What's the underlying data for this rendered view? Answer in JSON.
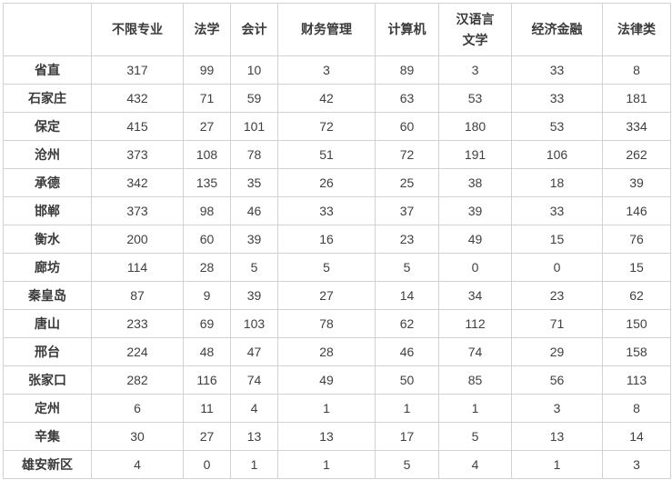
{
  "chart_data": {
    "type": "table",
    "title": "",
    "corner_label": "",
    "columns": [
      "不限专业",
      "法学",
      "会计",
      "财务管理",
      "计算机",
      "汉语言文学",
      "经济金融",
      "法律类"
    ],
    "column_header_lines": [
      [
        "不限专业"
      ],
      [
        "法学"
      ],
      [
        "会计"
      ],
      [
        "财务管理"
      ],
      [
        "计算机"
      ],
      [
        "汉语言",
        "文学"
      ],
      [
        "经济金融"
      ],
      [
        "法律类"
      ]
    ],
    "rows": [
      {
        "region": "省直",
        "values": [
          317,
          99,
          10,
          3,
          89,
          3,
          33,
          8
        ]
      },
      {
        "region": "石家庄",
        "values": [
          432,
          71,
          59,
          42,
          63,
          53,
          33,
          181
        ]
      },
      {
        "region": "保定",
        "values": [
          415,
          27,
          101,
          72,
          60,
          180,
          53,
          334
        ]
      },
      {
        "region": "沧州",
        "values": [
          373,
          108,
          78,
          51,
          72,
          191,
          106,
          262
        ]
      },
      {
        "region": "承德",
        "values": [
          342,
          135,
          35,
          26,
          25,
          38,
          18,
          39
        ]
      },
      {
        "region": "邯郸",
        "values": [
          373,
          98,
          46,
          33,
          37,
          39,
          33,
          146
        ]
      },
      {
        "region": "衡水",
        "values": [
          200,
          60,
          39,
          16,
          23,
          49,
          15,
          76
        ]
      },
      {
        "region": "廊坊",
        "values": [
          114,
          28,
          5,
          5,
          5,
          0,
          0,
          15
        ]
      },
      {
        "region": "秦皇岛",
        "values": [
          87,
          9,
          39,
          27,
          14,
          34,
          23,
          62
        ]
      },
      {
        "region": "唐山",
        "values": [
          233,
          69,
          103,
          78,
          62,
          112,
          71,
          150
        ]
      },
      {
        "region": "邢台",
        "values": [
          224,
          48,
          47,
          28,
          46,
          74,
          29,
          158
        ]
      },
      {
        "region": "张家口",
        "values": [
          282,
          116,
          74,
          49,
          50,
          85,
          56,
          113
        ]
      },
      {
        "region": "定州",
        "values": [
          6,
          11,
          4,
          1,
          1,
          1,
          3,
          8
        ]
      },
      {
        "region": "辛集",
        "values": [
          30,
          27,
          13,
          13,
          17,
          5,
          13,
          14
        ]
      },
      {
        "region": "雄安新区",
        "values": [
          4,
          0,
          1,
          1,
          5,
          4,
          1,
          3
        ]
      }
    ],
    "layout": {
      "grid": true,
      "header_bold": true,
      "row_labels_bold": true
    }
  },
  "colors": {
    "border": "#d2d2d2",
    "text": "#404040",
    "header_text": "#3a3a3a",
    "background": "#ffffff"
  }
}
